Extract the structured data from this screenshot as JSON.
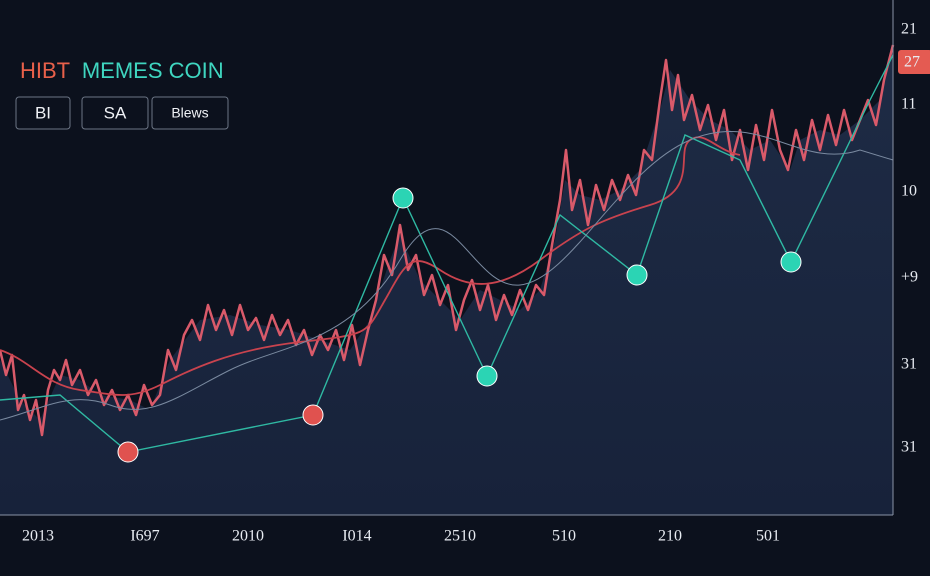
{
  "header": {
    "title_prefix": "HIBT",
    "title_rest": "MEMES COIN"
  },
  "buttons": [
    "BI",
    "SA",
    "Blews"
  ],
  "price_badge": "27",
  "y_axis_labels": [
    "21",
    "11",
    "10",
    "+9",
    "31",
    "31"
  ],
  "x_axis_labels": [
    "2013",
    "I697",
    "2010",
    "I014",
    "2510",
    "510",
    "210",
    "501"
  ]
}
